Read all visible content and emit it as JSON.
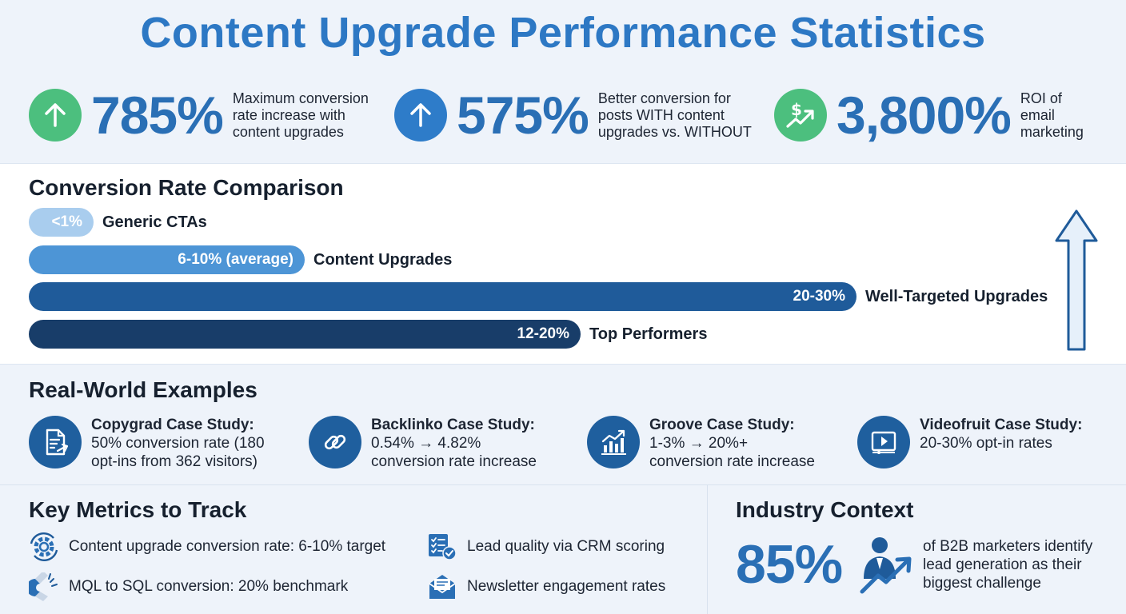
{
  "title": "Content Upgrade Performance Statistics",
  "stats": [
    {
      "value": "785%",
      "description": "Maximum conversion\nrate increase with\ncontent upgrades",
      "icon": "arrow-up-icon",
      "color": "#4cbf7e"
    },
    {
      "value": "575%",
      "description": "Better conversion for\nposts WITH content\nupgrades vs. WITHOUT",
      "icon": "arrow-up-icon",
      "color": "#2e7cc9"
    },
    {
      "value": "3,800%",
      "description": "ROI of\nemail\nmarketing",
      "icon": "dollar-trend-icon",
      "color": "#4cbf7e"
    }
  ],
  "comparison": {
    "title": "Conversion Rate Comparison"
  },
  "chart_data": {
    "type": "bar",
    "orientation": "horizontal",
    "title": "Conversion Rate Comparison",
    "categories": [
      "Generic CTAs",
      "Content Upgrades",
      "Well-Targeted Upgrades",
      "Top Performers"
    ],
    "value_labels": [
      "<1%",
      "6-10% (average)",
      "20-30%",
      "12-20%"
    ],
    "values": [
      1,
      10,
      30,
      20
    ],
    "colors": [
      "#a9cdee",
      "#4d95d6",
      "#1f5b9a",
      "#183d69"
    ],
    "xlim": [
      0,
      30
    ],
    "grid": false,
    "legend": "none"
  },
  "examples": {
    "title": "Real-World Examples",
    "items": [
      {
        "title": "Copygrad Case Study:",
        "description": "50% conversion rate (180\nopt-ins from 362 visitors)",
        "icon": "document-share-icon"
      },
      {
        "title": "Backlinko Case Study:",
        "description": "0.54% → 4.82%\nconversion rate increase",
        "icon": "link-icon"
      },
      {
        "title": "Groove Case Study:",
        "description": "1-3% → 20%+\nconversion rate increase",
        "icon": "growth-chart-icon"
      },
      {
        "title": "Videofruit Case Study:",
        "description": "20-30% opt-in rates",
        "icon": "video-player-icon"
      }
    ]
  },
  "metrics": {
    "title": "Key Metrics to Track",
    "items": [
      {
        "label": "Content upgrade conversion rate: 6-10% target",
        "icon": "gear-refresh-icon"
      },
      {
        "label": "Lead quality via CRM scoring",
        "icon": "checklist-icon"
      },
      {
        "label": "MQL to SQL conversion: 20% benchmark",
        "icon": "magnet-icon"
      },
      {
        "label": "Newsletter engagement rates",
        "icon": "envelope-icon"
      }
    ]
  },
  "industry": {
    "title": "Industry Context",
    "value": "85%",
    "description": "of B2B marketers identify\nlead generation as their\nbiggest challenge",
    "icon": "businessman-growth-icon"
  }
}
